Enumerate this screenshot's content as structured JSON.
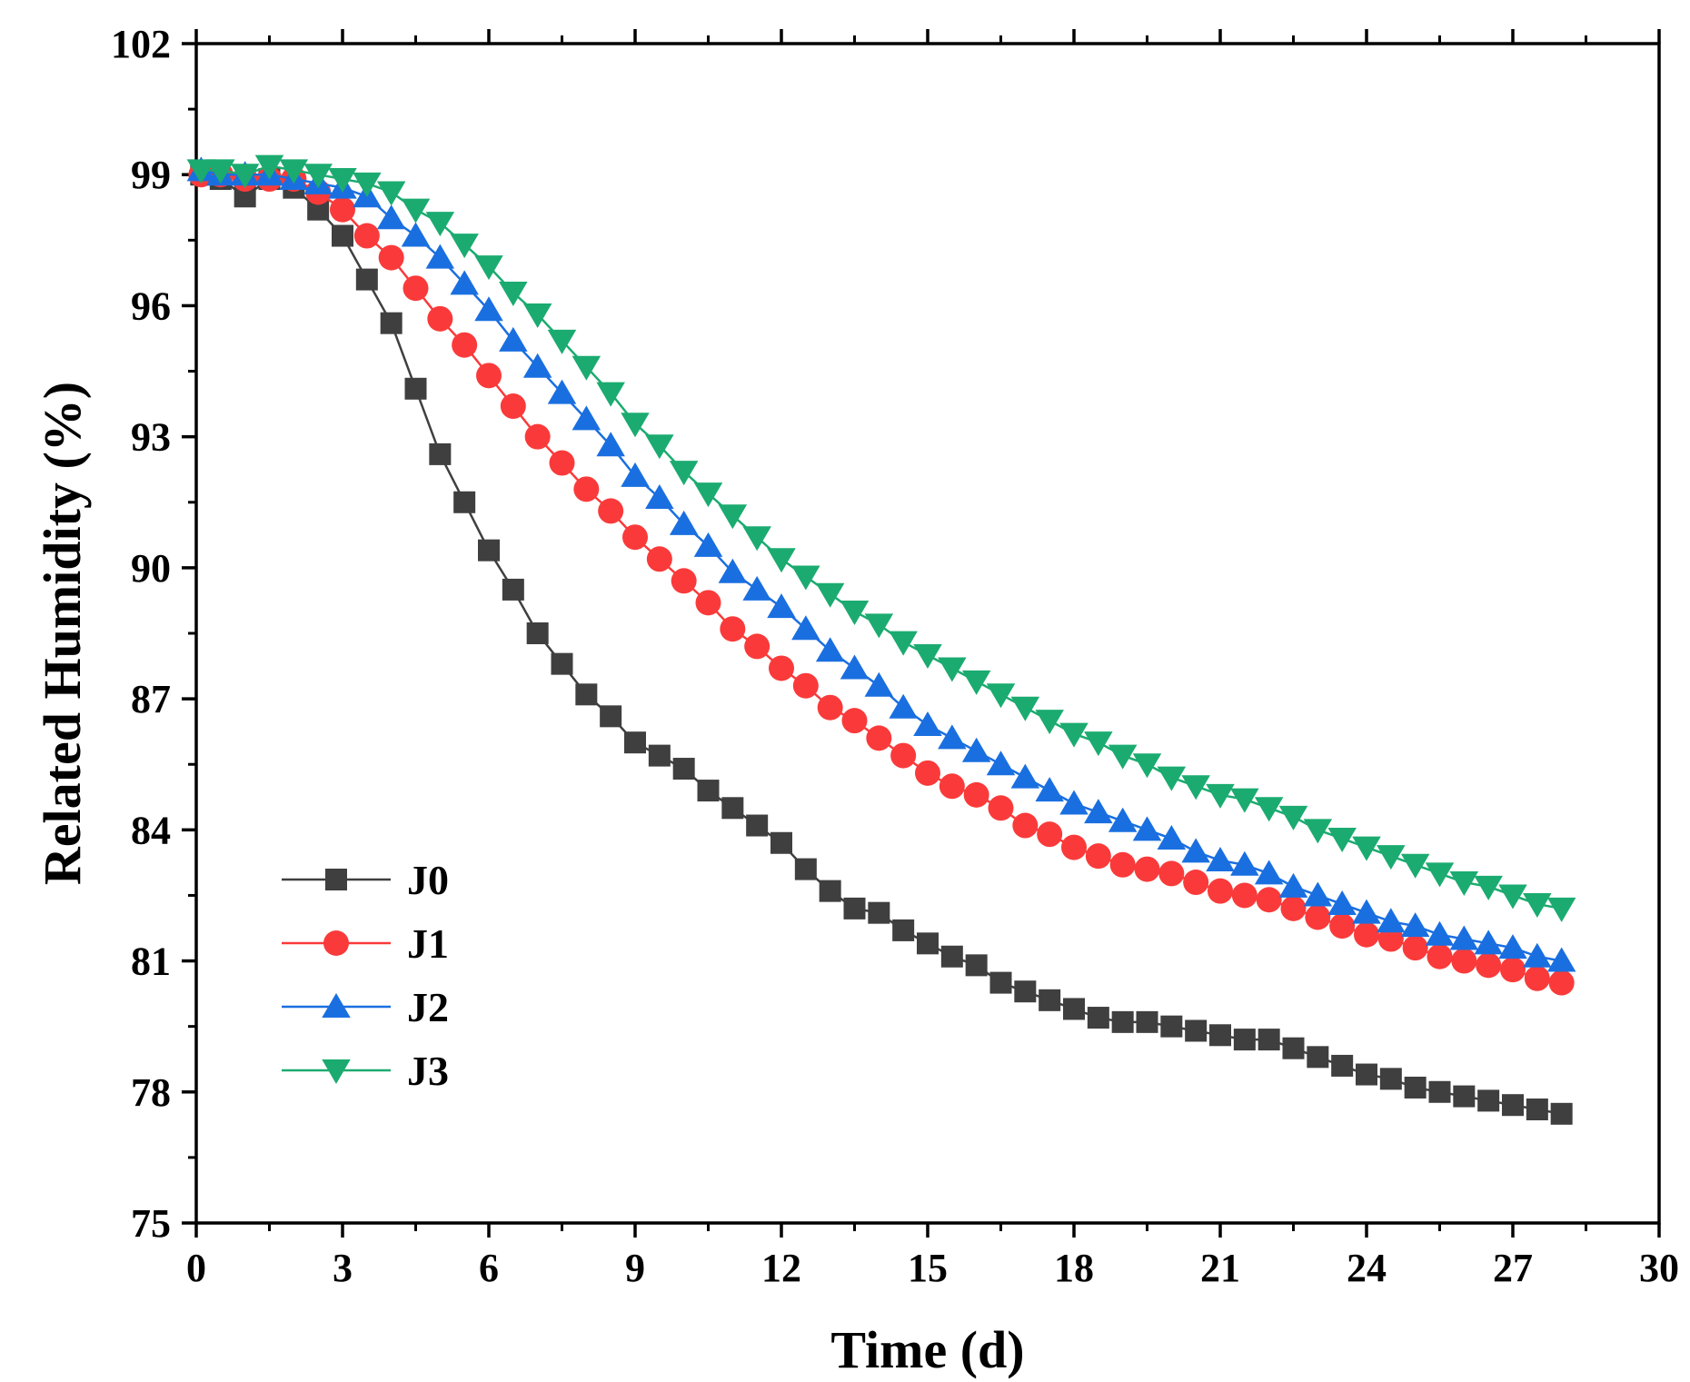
{
  "chart_data": {
    "type": "line",
    "xlabel": "Time (d)",
    "ylabel": "Related Humidity (%)",
    "xlim": [
      0,
      30
    ],
    "ylim": [
      75,
      102
    ],
    "xticks": [
      0,
      3,
      6,
      9,
      12,
      15,
      18,
      21,
      24,
      27,
      30
    ],
    "yticks": [
      75,
      78,
      81,
      84,
      87,
      90,
      93,
      96,
      99,
      102
    ],
    "grid": false,
    "legend_position": "lower-left",
    "series": [
      {
        "name": "J0",
        "color": "#3f3f3f",
        "marker": "square",
        "points": [
          [
            0.1,
            99.0
          ],
          [
            0.5,
            98.9
          ],
          [
            1.0,
            98.5
          ],
          [
            1.5,
            98.9
          ],
          [
            2.0,
            98.7
          ],
          [
            2.5,
            98.2
          ],
          [
            3.0,
            97.6
          ],
          [
            3.5,
            96.6
          ],
          [
            4.0,
            95.6
          ],
          [
            4.5,
            94.1
          ],
          [
            5.0,
            92.6
          ],
          [
            5.5,
            91.5
          ],
          [
            6.0,
            90.4
          ],
          [
            6.5,
            89.5
          ],
          [
            7.0,
            88.5
          ],
          [
            7.5,
            87.8
          ],
          [
            8.0,
            87.1
          ],
          [
            8.5,
            86.6
          ],
          [
            9.0,
            86.0
          ],
          [
            9.5,
            85.7
          ],
          [
            10.0,
            85.4
          ],
          [
            10.5,
            84.9
          ],
          [
            11.0,
            84.5
          ],
          [
            11.5,
            84.1
          ],
          [
            12.0,
            83.7
          ],
          [
            12.5,
            83.1
          ],
          [
            13.0,
            82.6
          ],
          [
            13.5,
            82.2
          ],
          [
            14.0,
            82.1
          ],
          [
            14.5,
            81.7
          ],
          [
            15.0,
            81.4
          ],
          [
            15.5,
            81.1
          ],
          [
            16.0,
            80.9
          ],
          [
            16.5,
            80.5
          ],
          [
            17.0,
            80.3
          ],
          [
            17.5,
            80.1
          ],
          [
            18.0,
            79.9
          ],
          [
            18.5,
            79.7
          ],
          [
            19.0,
            79.6
          ],
          [
            19.5,
            79.6
          ],
          [
            20.0,
            79.5
          ],
          [
            20.5,
            79.4
          ],
          [
            21.0,
            79.3
          ],
          [
            21.5,
            79.2
          ],
          [
            22.0,
            79.2
          ],
          [
            22.5,
            79.0
          ],
          [
            23.0,
            78.8
          ],
          [
            23.5,
            78.6
          ],
          [
            24.0,
            78.4
          ],
          [
            24.5,
            78.3
          ],
          [
            25.0,
            78.1
          ],
          [
            25.5,
            78.0
          ],
          [
            26.0,
            77.9
          ],
          [
            26.5,
            77.8
          ],
          [
            27.0,
            77.7
          ],
          [
            27.5,
            77.6
          ],
          [
            28.0,
            77.5
          ]
        ]
      },
      {
        "name": "J1",
        "color": "#fa3a3a",
        "marker": "circle",
        "points": [
          [
            0.1,
            99.0
          ],
          [
            0.5,
            99.0
          ],
          [
            1.0,
            98.9
          ],
          [
            1.5,
            98.9
          ],
          [
            2.0,
            98.9
          ],
          [
            2.5,
            98.6
          ],
          [
            3.0,
            98.2
          ],
          [
            3.5,
            97.6
          ],
          [
            4.0,
            97.1
          ],
          [
            4.5,
            96.4
          ],
          [
            5.0,
            95.7
          ],
          [
            5.5,
            95.1
          ],
          [
            6.0,
            94.4
          ],
          [
            6.5,
            93.7
          ],
          [
            7.0,
            93.0
          ],
          [
            7.5,
            92.4
          ],
          [
            8.0,
            91.8
          ],
          [
            8.5,
            91.3
          ],
          [
            9.0,
            90.7
          ],
          [
            9.5,
            90.2
          ],
          [
            10.0,
            89.7
          ],
          [
            10.5,
            89.2
          ],
          [
            11.0,
            88.6
          ],
          [
            11.5,
            88.2
          ],
          [
            12.0,
            87.7
          ],
          [
            12.5,
            87.3
          ],
          [
            13.0,
            86.8
          ],
          [
            13.5,
            86.5
          ],
          [
            14.0,
            86.1
          ],
          [
            14.5,
            85.7
          ],
          [
            15.0,
            85.3
          ],
          [
            15.5,
            85.0
          ],
          [
            16.0,
            84.8
          ],
          [
            16.5,
            84.5
          ],
          [
            17.0,
            84.1
          ],
          [
            17.5,
            83.9
          ],
          [
            18.0,
            83.6
          ],
          [
            18.5,
            83.4
          ],
          [
            19.0,
            83.2
          ],
          [
            19.5,
            83.1
          ],
          [
            20.0,
            83.0
          ],
          [
            20.5,
            82.8
          ],
          [
            21.0,
            82.6
          ],
          [
            21.5,
            82.5
          ],
          [
            22.0,
            82.4
          ],
          [
            22.5,
            82.2
          ],
          [
            23.0,
            82.0
          ],
          [
            23.5,
            81.8
          ],
          [
            24.0,
            81.6
          ],
          [
            24.5,
            81.5
          ],
          [
            25.0,
            81.3
          ],
          [
            25.5,
            81.1
          ],
          [
            26.0,
            81.0
          ],
          [
            26.5,
            80.9
          ],
          [
            27.0,
            80.8
          ],
          [
            27.5,
            80.6
          ],
          [
            28.0,
            80.5
          ]
        ]
      },
      {
        "name": "J2",
        "color": "#1a6fe0",
        "marker": "triangle-up",
        "points": [
          [
            0.1,
            99.1
          ],
          [
            0.5,
            99.0
          ],
          [
            1.0,
            99.0
          ],
          [
            1.5,
            99.0
          ],
          [
            2.0,
            98.9
          ],
          [
            2.5,
            98.8
          ],
          [
            3.0,
            98.7
          ],
          [
            3.5,
            98.5
          ],
          [
            4.0,
            98.0
          ],
          [
            4.5,
            97.6
          ],
          [
            5.0,
            97.1
          ],
          [
            5.5,
            96.5
          ],
          [
            6.0,
            95.9
          ],
          [
            6.5,
            95.2
          ],
          [
            7.0,
            94.6
          ],
          [
            7.5,
            94.0
          ],
          [
            8.0,
            93.4
          ],
          [
            8.5,
            92.8
          ],
          [
            9.0,
            92.1
          ],
          [
            9.5,
            91.6
          ],
          [
            10.0,
            91.0
          ],
          [
            10.5,
            90.5
          ],
          [
            11.0,
            89.9
          ],
          [
            11.5,
            89.5
          ],
          [
            12.0,
            89.1
          ],
          [
            12.5,
            88.6
          ],
          [
            13.0,
            88.1
          ],
          [
            13.5,
            87.7
          ],
          [
            14.0,
            87.3
          ],
          [
            14.5,
            86.8
          ],
          [
            15.0,
            86.4
          ],
          [
            15.5,
            86.1
          ],
          [
            16.0,
            85.8
          ],
          [
            16.5,
            85.5
          ],
          [
            17.0,
            85.2
          ],
          [
            17.5,
            84.9
          ],
          [
            18.0,
            84.6
          ],
          [
            18.5,
            84.4
          ],
          [
            19.0,
            84.2
          ],
          [
            19.5,
            84.0
          ],
          [
            20.0,
            83.8
          ],
          [
            20.5,
            83.5
          ],
          [
            21.0,
            83.3
          ],
          [
            21.5,
            83.2
          ],
          [
            22.0,
            83.0
          ],
          [
            22.5,
            82.7
          ],
          [
            23.0,
            82.5
          ],
          [
            23.5,
            82.3
          ],
          [
            24.0,
            82.1
          ],
          [
            24.5,
            81.9
          ],
          [
            25.0,
            81.8
          ],
          [
            25.5,
            81.6
          ],
          [
            26.0,
            81.5
          ],
          [
            26.5,
            81.4
          ],
          [
            27.0,
            81.3
          ],
          [
            27.5,
            81.1
          ],
          [
            28.0,
            81.0
          ]
        ]
      },
      {
        "name": "J3",
        "color": "#1bab70",
        "marker": "triangle-down",
        "points": [
          [
            0.1,
            99.1
          ],
          [
            0.5,
            99.1
          ],
          [
            1.0,
            99.0
          ],
          [
            1.5,
            99.2
          ],
          [
            2.0,
            99.1
          ],
          [
            2.5,
            99.0
          ],
          [
            3.0,
            98.9
          ],
          [
            3.5,
            98.8
          ],
          [
            4.0,
            98.6
          ],
          [
            4.5,
            98.2
          ],
          [
            5.0,
            97.9
          ],
          [
            5.5,
            97.4
          ],
          [
            6.0,
            96.9
          ],
          [
            6.5,
            96.3
          ],
          [
            7.0,
            95.8
          ],
          [
            7.5,
            95.2
          ],
          [
            8.0,
            94.6
          ],
          [
            8.5,
            94.0
          ],
          [
            9.0,
            93.3
          ],
          [
            9.5,
            92.8
          ],
          [
            10.0,
            92.2
          ],
          [
            10.5,
            91.7
          ],
          [
            11.0,
            91.2
          ],
          [
            11.5,
            90.7
          ],
          [
            12.0,
            90.2
          ],
          [
            12.5,
            89.8
          ],
          [
            13.0,
            89.4
          ],
          [
            13.5,
            89.0
          ],
          [
            14.0,
            88.7
          ],
          [
            14.5,
            88.3
          ],
          [
            15.0,
            88.0
          ],
          [
            15.5,
            87.7
          ],
          [
            16.0,
            87.4
          ],
          [
            16.5,
            87.1
          ],
          [
            17.0,
            86.8
          ],
          [
            17.5,
            86.5
          ],
          [
            18.0,
            86.2
          ],
          [
            18.5,
            86.0
          ],
          [
            19.0,
            85.7
          ],
          [
            19.5,
            85.5
          ],
          [
            20.0,
            85.2
          ],
          [
            20.5,
            85.0
          ],
          [
            21.0,
            84.8
          ],
          [
            21.5,
            84.7
          ],
          [
            22.0,
            84.5
          ],
          [
            22.5,
            84.3
          ],
          [
            23.0,
            84.0
          ],
          [
            23.5,
            83.8
          ],
          [
            24.0,
            83.6
          ],
          [
            24.5,
            83.4
          ],
          [
            25.0,
            83.2
          ],
          [
            25.5,
            83.0
          ],
          [
            26.0,
            82.8
          ],
          [
            26.5,
            82.7
          ],
          [
            27.0,
            82.5
          ],
          [
            27.5,
            82.3
          ],
          [
            28.0,
            82.2
          ]
        ]
      }
    ]
  }
}
